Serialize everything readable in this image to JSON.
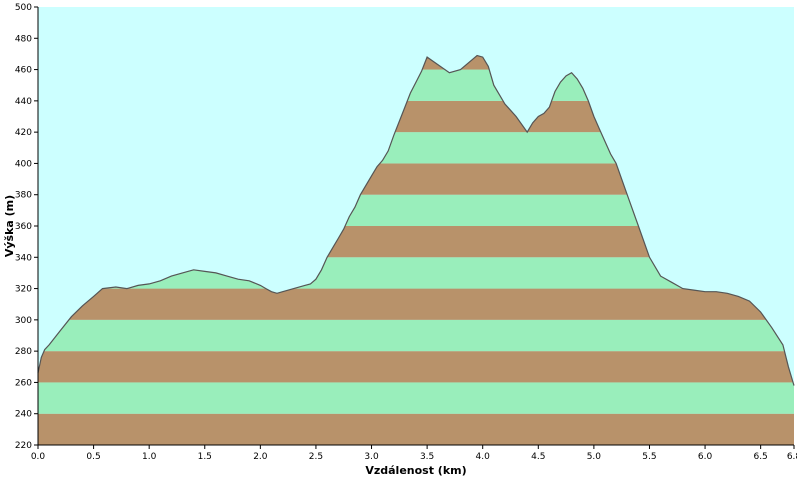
{
  "chart_data": {
    "type": "area",
    "title": "",
    "xlabel": "Vzdálenost  (km)",
    "ylabel": "Výška (m)",
    "xlim": [
      0,
      6.8
    ],
    "ylim": [
      220,
      500
    ],
    "x_ticks": [
      0,
      0.5,
      1,
      1.5,
      2,
      2.5,
      3,
      3.5,
      4,
      4.5,
      5,
      5.5,
      6,
      6.5,
      6.8
    ],
    "x_tick_labels": [
      "0.0",
      "0.5",
      "1.0",
      "1.5",
      "2.0",
      "2.5",
      "3.0",
      "3.5",
      "4.0",
      "4.5",
      "5.0",
      "5.5",
      "6.0",
      "6.5",
      "6.8"
    ],
    "y_ticks": [
      220,
      240,
      260,
      280,
      300,
      320,
      340,
      360,
      380,
      400,
      420,
      440,
      460,
      480,
      500
    ],
    "band_step": 20,
    "colors": {
      "sky": "#ccffff",
      "band_light": "#99eebb",
      "band_dark": "#b8926a",
      "profile_line": "#555555"
    },
    "series": [
      {
        "x": [
          0,
          0.03,
          0.06,
          0.1,
          0.2,
          0.3,
          0.4,
          0.5,
          0.58,
          0.7,
          0.8,
          0.9,
          1.0,
          1.1,
          1.2,
          1.3,
          1.4,
          1.5,
          1.6,
          1.7,
          1.8,
          1.9,
          2.0,
          2.05,
          2.1,
          2.15,
          2.2,
          2.3,
          2.4,
          2.45,
          2.5,
          2.55,
          2.6,
          2.65,
          2.7,
          2.75,
          2.8,
          2.85,
          2.9,
          3.0,
          3.05,
          3.1,
          3.15,
          3.2,
          3.3,
          3.35,
          3.4,
          3.45,
          3.5,
          3.6,
          3.7,
          3.8,
          3.9,
          3.95,
          4.0,
          4.05,
          4.1,
          4.2,
          4.3,
          4.4,
          4.45,
          4.5,
          4.55,
          4.6,
          4.65,
          4.7,
          4.75,
          4.8,
          4.85,
          4.9,
          4.95,
          5.0,
          5.05,
          5.1,
          5.15,
          5.2,
          5.3,
          5.4,
          5.5,
          5.6,
          5.7,
          5.8,
          5.9,
          6.0,
          6.1,
          6.2,
          6.3,
          6.4,
          6.5,
          6.6,
          6.7,
          6.75,
          6.8
        ],
        "y": [
          266,
          276,
          281,
          284,
          293,
          302,
          309,
          315,
          320,
          321,
          320,
          322,
          323,
          325,
          328,
          330,
          332,
          331,
          330,
          328,
          326,
          325,
          322,
          320,
          318,
          317,
          318,
          320,
          322,
          323,
          326,
          332,
          340,
          346,
          352,
          358,
          366,
          372,
          380,
          392,
          398,
          402,
          408,
          418,
          436,
          445,
          452,
          459,
          468,
          463,
          458,
          460,
          466,
          469,
          468,
          462,
          450,
          438,
          430,
          420,
          426,
          430,
          432,
          436,
          446,
          452,
          456,
          458,
          454,
          448,
          440,
          430,
          422,
          414,
          406,
          400,
          380,
          360,
          340,
          328,
          324,
          320,
          319,
          318,
          318,
          317,
          315,
          312,
          305,
          295,
          284,
          270,
          258
        ]
      }
    ]
  }
}
